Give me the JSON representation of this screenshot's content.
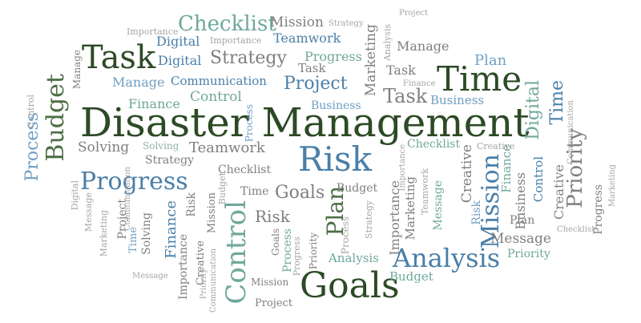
{
  "words": {
    "disaster_management": "Disaster Management",
    "risk": "Risk",
    "task": "Task",
    "time": "Time",
    "goals": "Goals",
    "control": "Control",
    "analysis": "Analysis",
    "progress": "Progress",
    "checklist": "Checklist",
    "mission": "Mission",
    "strategy": "Strategy",
    "teamwork": "Teamwork",
    "digital": "Digital",
    "manage": "Manage",
    "plan": "Plan",
    "communication": "Communication",
    "project": "Project",
    "business": "Business",
    "finance": "Finance",
    "budget": "Budget",
    "process": "Process",
    "solving": "Solving",
    "importance": "Importance",
    "marketing": "Marketing",
    "priority": "Priority",
    "creative": "Creative",
    "message": "Message"
  },
  "colors": {
    "dark_green": "#2d4a26",
    "green": "#4c6e44",
    "blue": "#4a7fa8",
    "light_blue": "#6f9fc4",
    "teal": "#6fa89b",
    "gray": "#7f7f7f",
    "light_gray": "#a6a6a6"
  }
}
